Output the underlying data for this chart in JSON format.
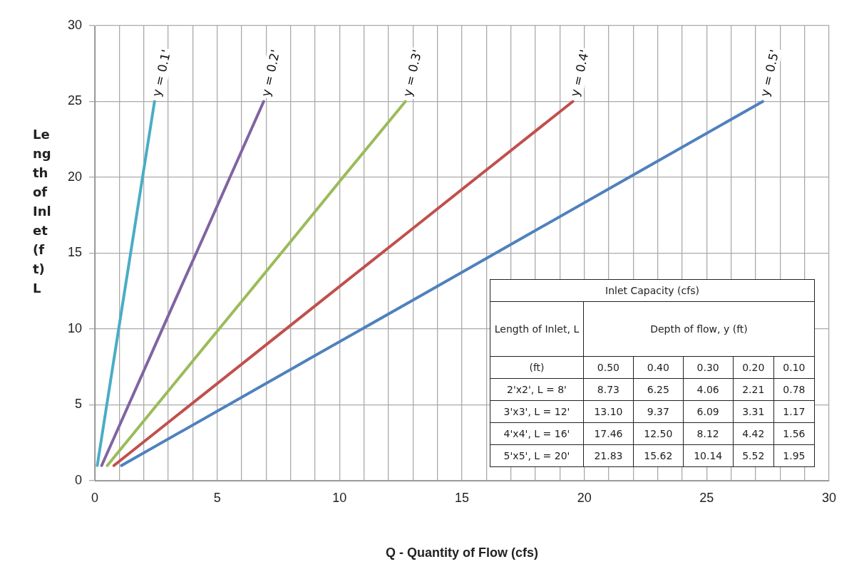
{
  "chart_data": {
    "type": "line",
    "xlabel": "Q - Quantity of Flow (cfs)",
    "ylabel": "Length of Inlet (ft)\nL",
    "xlim": [
      0,
      30
    ],
    "ylim": [
      0,
      30
    ],
    "xticks": [
      0,
      {
        "value": 1,
        "label": null
      },
      {
        "value": 2,
        "label": null
      },
      {
        "value": 3,
        "label": null
      },
      {
        "value": 4,
        "label": null
      },
      5,
      {
        "value": 6,
        "label": null
      },
      {
        "value": 7,
        "label": null
      },
      {
        "value": 8,
        "label": null
      },
      {
        "value": 9,
        "label": null
      },
      10,
      {
        "value": 11,
        "label": null
      },
      {
        "value": 12,
        "label": null
      },
      {
        "value": 13,
        "label": null
      },
      {
        "value": 14,
        "label": null
      },
      15,
      {
        "value": 16,
        "label": null
      },
      {
        "value": 17,
        "label": null
      },
      {
        "value": 18,
        "label": null
      },
      {
        "value": 19,
        "label": null
      },
      20,
      {
        "value": 21,
        "label": null
      },
      {
        "value": 22,
        "label": null
      },
      {
        "value": 23,
        "label": null
      },
      {
        "value": 24,
        "label": null
      },
      25,
      {
        "value": 26,
        "label": null
      },
      {
        "value": 27,
        "label": null
      },
      {
        "value": 28,
        "label": null
      },
      {
        "value": 29,
        "label": null
      },
      30
    ],
    "yticks": [
      0,
      5,
      10,
      15,
      20,
      25,
      30
    ],
    "grid": true,
    "marker": "none",
    "series": [
      {
        "name": "y = 0.1'",
        "color": "#4bacc6",
        "x": [
          0.1,
          0.78,
          1.17,
          1.56,
          1.95,
          2.44
        ],
        "values": [
          1,
          8,
          12,
          16,
          20,
          25
        ]
      },
      {
        "name": "y = 0.2'",
        "color": "#8064a2",
        "x": [
          0.28,
          2.21,
          3.31,
          4.42,
          5.52,
          6.9
        ],
        "values": [
          1,
          8,
          12,
          16,
          20,
          25
        ]
      },
      {
        "name": "y = 0.3'",
        "color": "#9bbb59",
        "x": [
          0.51,
          4.06,
          6.09,
          8.12,
          10.14,
          12.69
        ],
        "values": [
          1,
          8,
          12,
          16,
          20,
          25
        ]
      },
      {
        "name": "y = 0.4'",
        "color": "#c0504d",
        "x": [
          0.78,
          6.25,
          9.37,
          12.5,
          15.62,
          19.53
        ],
        "values": [
          1,
          8,
          12,
          16,
          20,
          25
        ]
      },
      {
        "name": "y = 0.5'",
        "color": "#4f81bd",
        "x": [
          1.09,
          8.73,
          13.1,
          17.46,
          21.83,
          27.29
        ],
        "values": [
          1,
          8,
          12,
          16,
          20,
          25
        ]
      }
    ],
    "annotations": [
      "Inlet Capacity  (cfs)",
      "Length of Inlet, L",
      "Depth of flow, y (ft)",
      "(ft)",
      "0.50",
      "0.40",
      "0.30",
      "0.20",
      "0.10",
      "2'x2', L = 8'",
      "8.73",
      "6.25",
      "4.06",
      "2.21",
      "0.78",
      "3'x3', L = 12'",
      "13.10",
      "9.37",
      "6.09",
      "3.31",
      "1.17",
      "4'x4', L = 16'",
      "17.46",
      "12.50",
      "8.12",
      "4.42",
      "1.56",
      "5'x5', L = 20'",
      "21.83",
      "15.62",
      "10.14",
      "5.52",
      "1.95"
    ]
  }
}
